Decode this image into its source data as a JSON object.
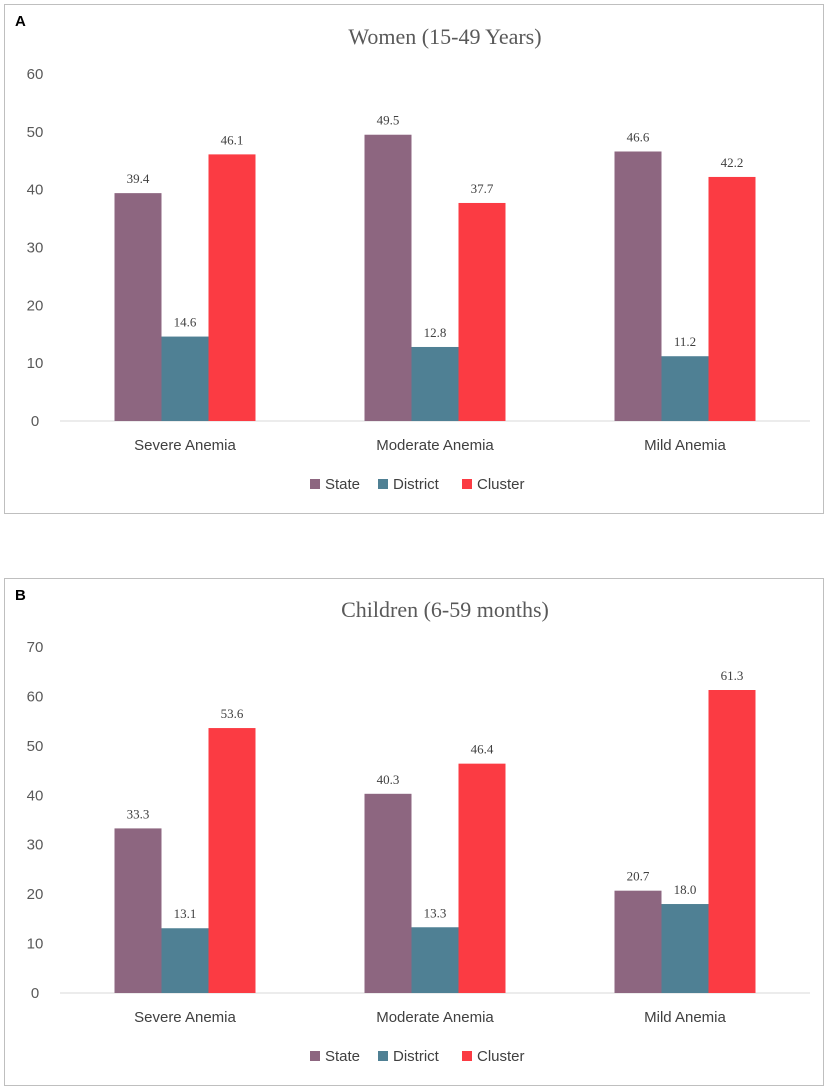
{
  "chart_data": [
    {
      "type": "bar",
      "panel_label": "A",
      "title": "Women  (15-49 Years)",
      "categories": [
        "Severe Anemia",
        "Moderate Anemia",
        "Mild Anemia"
      ],
      "series": [
        {
          "name": "State",
          "color": "#8d6680",
          "values": [
            39.4,
            49.5,
            46.6
          ],
          "labels": [
            "39.4",
            "49.5",
            "46.6"
          ]
        },
        {
          "name": "District",
          "color": "#4f8094",
          "values": [
            14.6,
            12.8,
            11.2
          ],
          "labels": [
            "14.6",
            "12.8",
            "11.2"
          ]
        },
        {
          "name": "Cluster",
          "color": "#fb3b43",
          "values": [
            46.1,
            37.7,
            42.2
          ],
          "labels": [
            "46.1",
            "37.7",
            "42.2"
          ]
        }
      ],
      "ylim": [
        0,
        60
      ],
      "yticks": [
        "0",
        "10",
        "20",
        "30",
        "40",
        "50",
        "60"
      ],
      "grid": false,
      "legend": "bottom-center"
    },
    {
      "type": "bar",
      "panel_label": "B",
      "title": "Children (6-59 months)",
      "categories": [
        "Severe Anemia",
        "Moderate Anemia",
        "Mild Anemia"
      ],
      "series": [
        {
          "name": "State",
          "color": "#8d6680",
          "values": [
            33.3,
            40.3,
            20.7
          ],
          "labels": [
            "33.3",
            "40.3",
            "20.7"
          ]
        },
        {
          "name": "District",
          "color": "#4f8094",
          "values": [
            13.1,
            13.3,
            18.0
          ],
          "labels": [
            "13.1",
            "13.3",
            "18.0"
          ]
        },
        {
          "name": "Cluster",
          "color": "#fb3b43",
          "values": [
            53.6,
            46.4,
            61.3
          ],
          "labels": [
            "53.6",
            "46.4",
            "61.3"
          ]
        }
      ],
      "ylim": [
        0,
        70
      ],
      "yticks": [
        "0",
        "10",
        "20",
        "30",
        "40",
        "50",
        "60",
        "70"
      ],
      "grid": false,
      "legend": "bottom-center"
    }
  ]
}
